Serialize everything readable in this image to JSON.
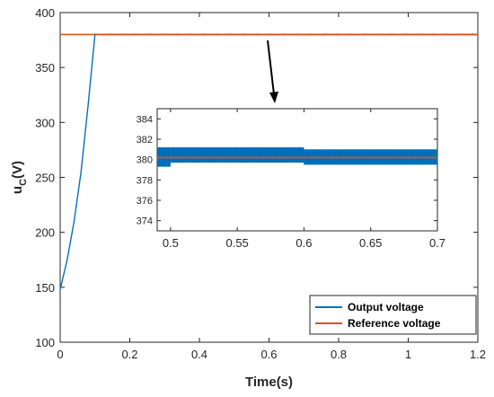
{
  "chart_data": [
    {
      "type": "line",
      "xlabel": "Time(s)",
      "ylabel_main": "u",
      "ylabel_sub": "C",
      "ylabel_unit": "(V)",
      "xlim": [
        0,
        1.2
      ],
      "ylim": [
        100,
        400
      ],
      "xticks": [
        0,
        0.2,
        0.4,
        0.6,
        0.8,
        1,
        1.2
      ],
      "xtick_labels": [
        "0",
        "0.2",
        "0.4",
        "0.6",
        "0.8",
        "1",
        "1.2"
      ],
      "yticks": [
        100,
        150,
        200,
        250,
        300,
        350,
        400
      ],
      "ytick_labels": [
        "100",
        "150",
        "200",
        "250",
        "300",
        "350",
        "400"
      ],
      "grid": false,
      "legend_position": "bottom-right",
      "series": [
        {
          "name": "Output voltage",
          "color": "#0072BD",
          "points": [
            [
              0,
              148
            ],
            [
              0.02,
              175
            ],
            [
              0.04,
              210
            ],
            [
              0.06,
              255
            ],
            [
              0.08,
              315
            ],
            [
              0.1,
              380
            ],
            [
              1.2,
              380
            ]
          ]
        },
        {
          "name": "Reference voltage",
          "color": "#D95319",
          "points": [
            [
              0,
              380
            ],
            [
              1.2,
              380
            ]
          ]
        }
      ]
    },
    {
      "type": "line",
      "inset": true,
      "xlim": [
        0.49,
        0.7
      ],
      "ylim": [
        373,
        385
      ],
      "xticks": [
        0.5,
        0.55,
        0.6,
        0.65,
        0.7
      ],
      "xtick_labels": [
        "0.5",
        "0.55",
        "0.6",
        "0.65",
        "0.7"
      ],
      "yticks": [
        374,
        376,
        378,
        380,
        382,
        384
      ],
      "ytick_labels": [
        "374",
        "376",
        "378",
        "380",
        "382",
        "384"
      ],
      "series": [
        {
          "name": "Output voltage",
          "color": "#0072BD",
          "ripple_band": [
            {
              "x": [
                0.49,
                0.5
              ],
              "low": 379.3,
              "high": 381.2
            },
            {
              "x": [
                0.5,
                0.6
              ],
              "low": 379.7,
              "high": 381.2
            },
            {
              "x": [
                0.6,
                0.7
              ],
              "low": 379.5,
              "high": 381.0
            }
          ]
        },
        {
          "name": "Reference voltage",
          "color": "#D95319",
          "points": [
            [
              0.49,
              380.2
            ],
            [
              0.7,
              380.2
            ]
          ]
        }
      ]
    }
  ]
}
